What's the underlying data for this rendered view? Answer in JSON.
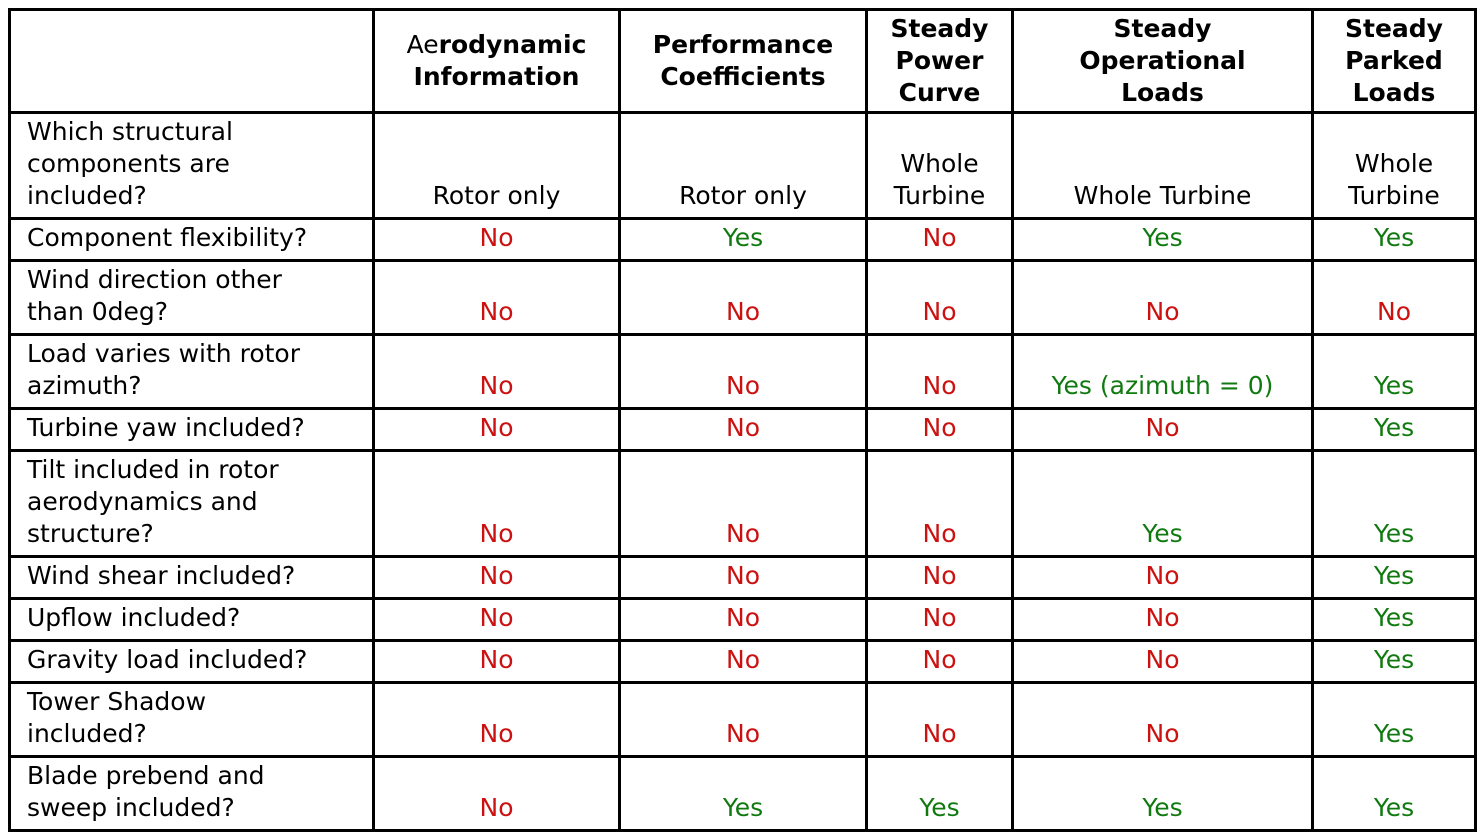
{
  "page": {
    "background": "#ffffff"
  },
  "table": {
    "colors": {
      "yes_text": "#107a10",
      "no_text": "#cc1111",
      "border": "#000000",
      "header_text": "#000000",
      "body_text": "#000000"
    },
    "columns": [
      {
        "key": "question",
        "header": ""
      },
      {
        "key": "aerodynamic-information",
        "header": "Aerodynamic\nInformation",
        "header_regular_prefix": "Ae"
      },
      {
        "key": "performance-coefficients",
        "header": "Performance\nCoefficients"
      },
      {
        "key": "steady-power-curve",
        "header": "Steady\nPower\nCurve"
      },
      {
        "key": "steady-operational-loads",
        "header": "Steady\nOperational\nLoads"
      },
      {
        "key": "steady-parked-loads",
        "header": "Steady\nParked\nLoads"
      }
    ],
    "rows": [
      {
        "question": "Which structural\ncomponents are\nincluded?",
        "values": [
          "Rotor only",
          "Rotor only",
          "Whole Turbine",
          "Whole Turbine",
          "Whole Turbine"
        ]
      },
      {
        "question": "Component flexibility?",
        "values": [
          "No",
          "Yes",
          "No",
          "Yes",
          "Yes"
        ]
      },
      {
        "question": "Wind direction other\nthan 0deg?",
        "values": [
          "No",
          "No",
          "No",
          "No",
          "No"
        ]
      },
      {
        "question": "Load varies with rotor\nazimuth?",
        "values": [
          "No",
          "No",
          "No",
          "Yes (azimuth = 0)",
          "Yes"
        ]
      },
      {
        "question": "Turbine yaw included?",
        "values": [
          "No",
          "No",
          "No",
          "No",
          "Yes"
        ]
      },
      {
        "question": "Tilt included in rotor\naerodynamics and\nstructure?",
        "values": [
          "No",
          "No",
          "No",
          "Yes",
          "Yes"
        ]
      },
      {
        "question": "Wind shear included?",
        "values": [
          "No",
          "No",
          "No",
          "No",
          "Yes"
        ]
      },
      {
        "question": "Upflow included?",
        "values": [
          "No",
          "No",
          "No",
          "No",
          "Yes"
        ]
      },
      {
        "question": "Gravity load included?",
        "values": [
          "No",
          "No",
          "No",
          "No",
          "Yes"
        ]
      },
      {
        "question": "Tower Shadow\nincluded?",
        "values": [
          "No",
          "No",
          "No",
          "No",
          "Yes"
        ]
      },
      {
        "question": "Blade prebend and\nsweep included?",
        "values": [
          "No",
          "Yes",
          "Yes",
          "Yes",
          "Yes"
        ]
      }
    ]
  }
}
